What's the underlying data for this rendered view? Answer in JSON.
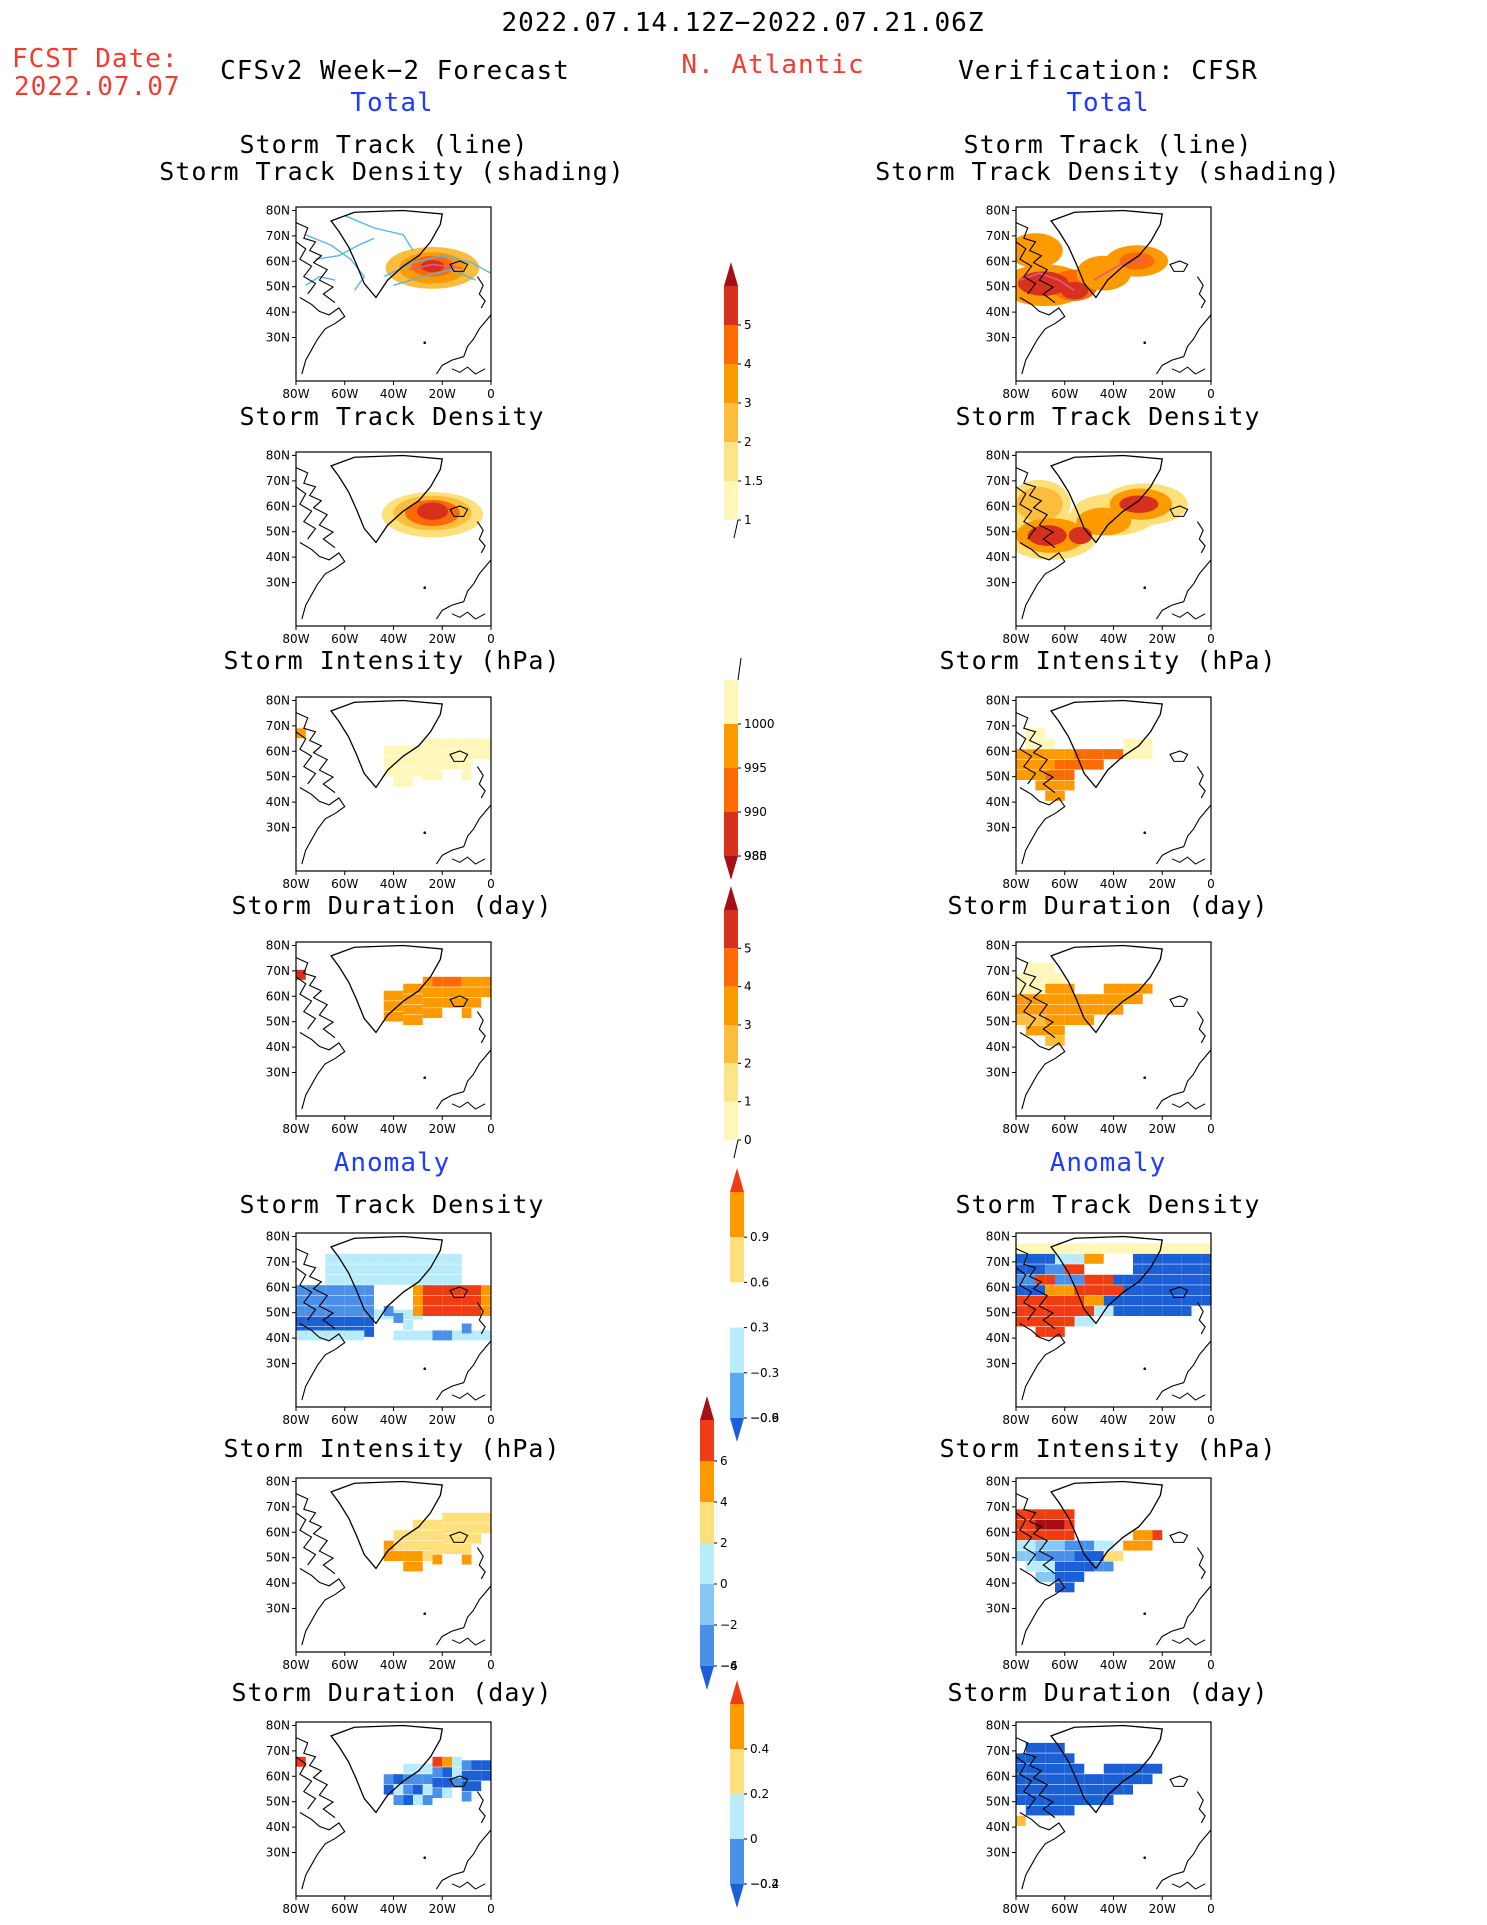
{
  "header": {
    "date_range": "2022.07.14.12Z−2022.07.21.06Z",
    "region": "N. Atlantic",
    "fcst_label": "FCST Date:",
    "fcst_date": "2022.07.07",
    "left_title": "CFSv2 Week−2 Forecast",
    "right_title": "Verification: CFSR",
    "total_label": "Total",
    "anomaly_label": "Anomaly"
  },
  "panel_titles": {
    "track_line": "Storm Track (line)",
    "track_shading": "Storm Track Density (shading)",
    "density": "Storm Track Density",
    "intensity": "Storm Intensity (hPa)",
    "duration": "Storm Duration (day)"
  },
  "axes": {
    "lat_labels": [
      "80N",
      "70N",
      "60N",
      "50N",
      "40N",
      "30N"
    ],
    "lon_labels": [
      "80W",
      "60W",
      "40W",
      "20W",
      "0"
    ]
  },
  "colorbars": {
    "density": {
      "labels": [
        "5",
        "4",
        "3",
        "2",
        "1.5",
        "1"
      ],
      "colors": [
        "#a50f15",
        "#d7301f",
        "#fc6a04",
        "#fd9a00",
        "#fdbd3c",
        "#fde48a",
        "#fff7b8"
      ]
    },
    "intensity": {
      "labels": [
        "1000",
        "995",
        "990",
        "985",
        "980"
      ],
      "colors": [
        "#fff7b8",
        "#fd9a00",
        "#fc6a04",
        "#d7301f",
        "#a50f15"
      ]
    },
    "duration": {
      "labels": [
        "5",
        "4",
        "3",
        "2",
        "1",
        "0"
      ],
      "colors": [
        "#a50f15",
        "#d7301f",
        "#fc6a04",
        "#fd9a00",
        "#fdbd3c",
        "#fde48a",
        "#fff7b8"
      ]
    },
    "anom_density": {
      "labels": [
        "0.9",
        "0.6",
        "0.3",
        "−0.3",
        "−0.6",
        "−0.9"
      ],
      "colors": [
        "#f03c12",
        "#fd9a00",
        "#fde07a",
        "#ffffff",
        "#b8ecfa",
        "#5aaaf0",
        "#1a5fd6"
      ]
    },
    "anom_intensity": {
      "labels": [
        "6",
        "4",
        "2",
        "0",
        "−2",
        "−4",
        "−6"
      ],
      "colors": [
        "#a50f15",
        "#f03c12",
        "#fd9a00",
        "#fde07a",
        "#b8ecfa",
        "#86c7f5",
        "#4a90e8",
        "#1a5fd6"
      ]
    },
    "anom_duration": {
      "labels": [
        "0.4",
        "0.2",
        "0",
        "−0.2",
        "−0.4"
      ],
      "colors": [
        "#f03c12",
        "#fd9a00",
        "#fde07a",
        "#b8ecfa",
        "#4a90e8",
        "#1a5fd6"
      ]
    }
  }
}
